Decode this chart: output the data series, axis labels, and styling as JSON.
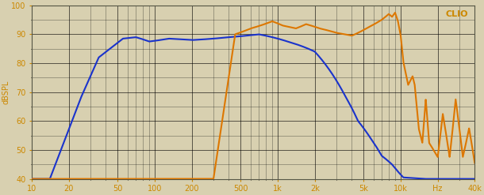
{
  "xlim": [
    10,
    40000
  ],
  "ylim": [
    40,
    100
  ],
  "yticks": [
    40,
    50,
    60,
    70,
    80,
    90,
    100
  ],
  "xtick_positions": [
    10,
    20,
    50,
    100,
    200,
    500,
    1000,
    2000,
    5000,
    10000,
    20000,
    40000
  ],
  "xtick_labels": [
    "10",
    "20",
    "50",
    "100",
    "200",
    "500",
    "1k",
    "2k",
    "5k",
    "10k",
    "Hz",
    "40k"
  ],
  "ylabel": "dBSPL",
  "watermark": "CLIO",
  "background_color": "#d8d0b0",
  "grid_color": "#000000",
  "blue_color": "#1a33cc",
  "orange_color": "#dd7700",
  "tick_color": "#cc8800",
  "figsize": [
    6.1,
    2.47
  ],
  "dpi": 100
}
